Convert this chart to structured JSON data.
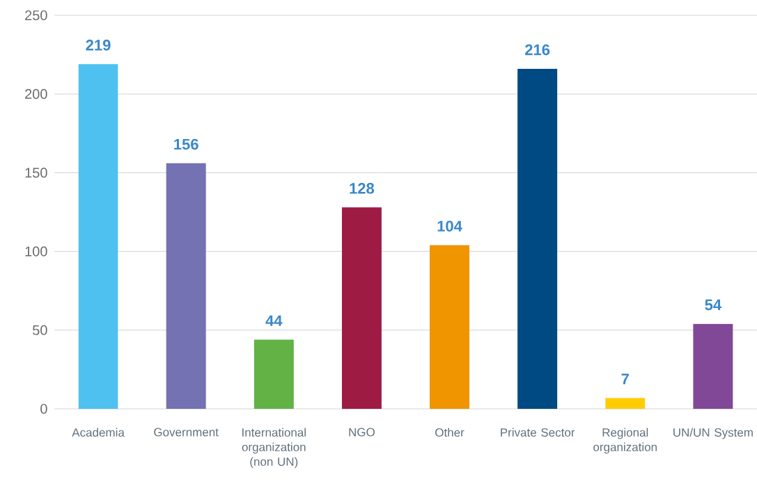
{
  "chart_data": {
    "type": "bar",
    "categories": [
      "Academia",
      "Government",
      "International organization (non UN)",
      "NGO",
      "Other",
      "Private Sector",
      "Regional organization",
      "UN/UN System"
    ],
    "values": [
      219,
      156,
      44,
      128,
      104,
      216,
      7,
      54
    ],
    "colors": [
      "#4fc1f0",
      "#7472b3",
      "#62b246",
      "#9e1b44",
      "#f09400",
      "#004a83",
      "#ffcc00",
      "#824898"
    ],
    "ylim": [
      0,
      250
    ],
    "yticks": [
      0,
      50,
      100,
      150,
      200,
      250
    ],
    "grid": "y",
    "data_labels": true
  }
}
